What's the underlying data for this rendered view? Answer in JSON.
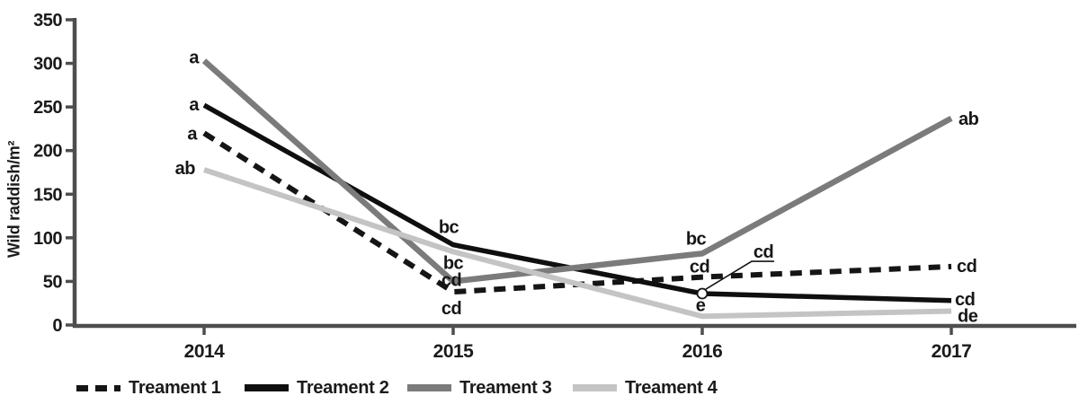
{
  "chart_data": {
    "type": "line",
    "title": "",
    "xlabel": "",
    "ylabel": "Wild raddish/m²",
    "x_categories": [
      "2014",
      "2015",
      "2016",
      "2017"
    ],
    "ylim": [
      0,
      350
    ],
    "ytick_step": 50,
    "ytick_labels": [
      "0",
      "50",
      "100",
      "150",
      "200",
      "250",
      "300",
      "350"
    ],
    "grid": false,
    "legend_position": "bottom",
    "colors": {
      "axis": "#4e4e4e",
      "text": "#1b1b1b",
      "background": "#ffffff",
      "callout_marker_fill": "#ffffff"
    },
    "series": [
      {
        "name": "Treament 1",
        "line_style": "dashed",
        "color": "#151515",
        "values": [
          220,
          38,
          55,
          67
        ],
        "sig_labels": [
          "a",
          "cd",
          "cd",
          "cd"
        ]
      },
      {
        "name": "Treament 2",
        "line_style": "solid",
        "color": "#0f0f0f",
        "values": [
          252,
          92,
          36,
          28
        ],
        "sig_labels": [
          "a",
          "bc",
          "cd",
          "cd"
        ]
      },
      {
        "name": "Treament 3",
        "line_style": "solid",
        "color": "#7b7b7b",
        "values": [
          303,
          50,
          82,
          237
        ],
        "sig_labels": [
          "a",
          "cd",
          "bc",
          "ab"
        ]
      },
      {
        "name": "Treament 4",
        "line_style": "solid",
        "color": "#c4c4c4",
        "values": [
          178,
          84,
          10,
          16
        ],
        "sig_labels": [
          "ab",
          "bc",
          "e",
          "de"
        ]
      }
    ],
    "callout": {
      "series_index": 1,
      "point_index": 2,
      "label": "cd",
      "marker": "open-circle"
    }
  }
}
